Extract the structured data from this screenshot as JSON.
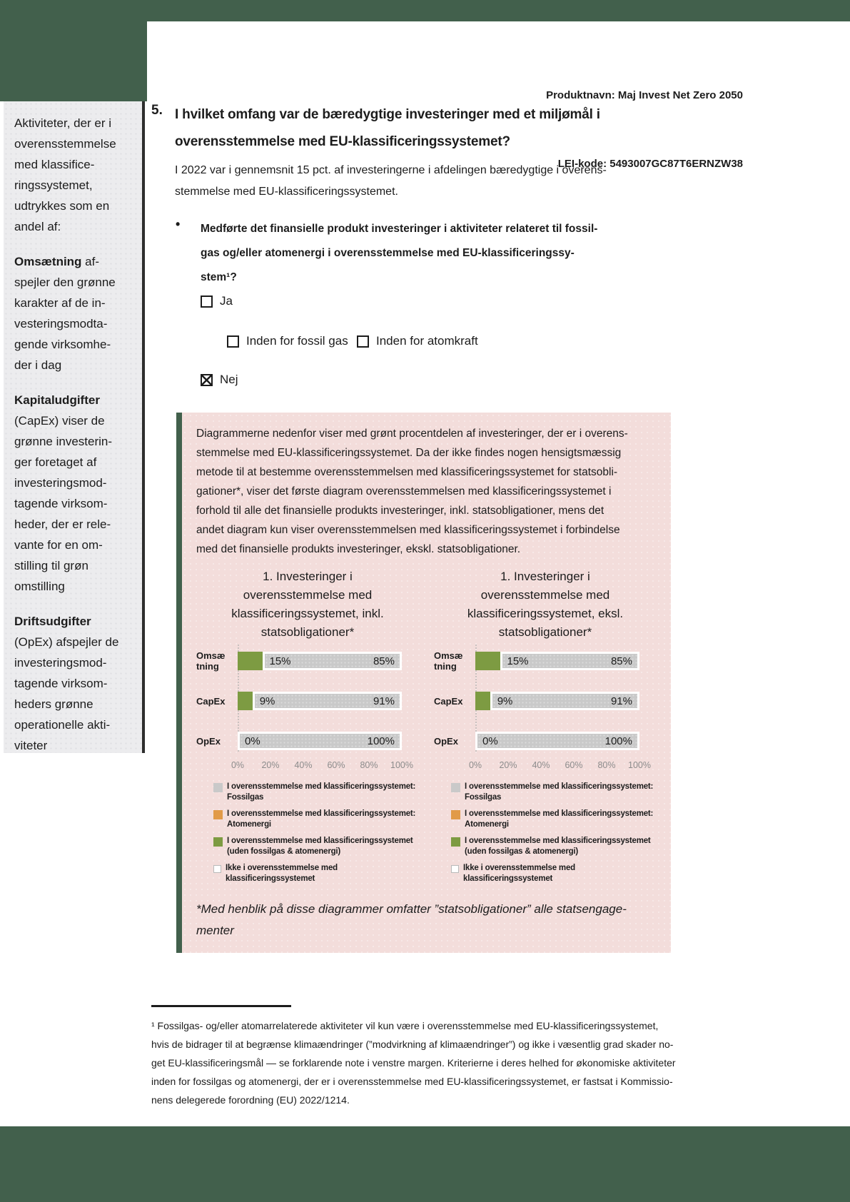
{
  "colors": {
    "frame_green": "#42604c",
    "sidebar_bg": "#ececee",
    "pink_bg": "#f3dddb",
    "bar_green": "#7d9b42",
    "bar_gray": "#c9c9c9",
    "legend_orange": "#e19a48",
    "tick_gray": "#8c8c8c",
    "text": "#1c1c1c"
  },
  "header": {
    "product_line": "Produktnavn: Maj Invest Net Zero 2050",
    "lei_line": "LEI-kode: 5493007GC87T6ERNZW38"
  },
  "sidebar": {
    "intro": "Aktiviteter, der er i\noverensstemmelse\nmed klassifice-\nringssystemet,\nudtrykkes som en\nandel af:",
    "paragraphs": [
      {
        "lead": "Omsætning",
        "rest": " af-\nspejler den grønne\nkarakter af de in-\nvesteringsmodta-\ngende virksomhe-\nder i dag"
      },
      {
        "lead": "Kapitaludgifter",
        "rest": "\n(CapEx) viser de\ngrønne investerin-\nger foretaget af\ninvesteringsmod-\ntagende virksom-\nheder, der er rele-\nvante for en om-\nstilling til grøn\nomstilling"
      },
      {
        "lead": "Driftsudgifter",
        "rest": "\n(OpEx) afspejler de\ninvesteringsmod-\ntagende virksom-\nheders grønne\noperationelle akti-\nviteter"
      }
    ]
  },
  "question": {
    "number": "5.",
    "title": "I hvilket omfang var de bæredygtige investeringer med et miljømål i\noverensstemmelse med EU-klassificeringssystemet?",
    "intro": "I 2022 var i gennemsnit 15 pct. af investeringerne i afdelingen bæredygtige i overens-\nstemmelse med EU-klassificeringssystemet.",
    "bullet_marker": "•",
    "bullet": "Medførte det finansielle produkt investeringer i aktiviteter relateret til fossil-\ngas og/eller atomenergi i overensstemmelse med EU-klassificeringssy-\nstem¹?",
    "checkboxes": [
      {
        "label": "Ja",
        "checked": false
      },
      {
        "label": "Inden for fossil gas",
        "checked": false
      },
      {
        "label": "Inden for atomkraft",
        "checked": false
      },
      {
        "label": "Nej",
        "checked": true
      }
    ]
  },
  "pink_box": {
    "intro": "Diagrammerne nedenfor viser med grønt procentdelen af investeringer, der er i overens-\nstemmelse med EU-klassificeringssystemet. Da der ikke findes nogen hensigtsmæssig\nmetode til at bestemme overensstemmelsen med klassificeringssystemet for statsobli-\ngationer*, viser det første diagram overensstemmelsen med klassificeringssystemet i\nforhold til alle det finansielle produkts investeringer, inkl. statsobligationer, mens det\nandet diagram kun viser overensstemmelsen med klassificeringssystemet i forbindelse\nmed det finansielle produkts investeringer, ekskl. statsobligationer.",
    "note": "*Med henblik på disse diagrammer omfatter ”statsobligationer” alle statsengage-\nmenter"
  },
  "chart_data": [
    {
      "type": "bar",
      "title": "1. Investeringer i\noverensstemmelse med\nklassificeringssystemet, inkl.\nstatsobligationer*",
      "categories": [
        "Omsæ\ntning",
        "CapEx",
        "OpEx"
      ],
      "series": [
        {
          "name": "I overensstemmelse med klassificeringssystemet (uden fossilgas & atomenergi)",
          "values": [
            15,
            9,
            0
          ],
          "color": "#7d9b42"
        },
        {
          "name": "Ikke i overensstemmelse med klassificeringssystemet",
          "values": [
            85,
            91,
            100
          ],
          "color": "#c9c9c9"
        }
      ],
      "bar_labels": [
        [
          "15%",
          "85%"
        ],
        [
          "9%",
          "91%"
        ],
        [
          "0%",
          "100%"
        ]
      ],
      "x_ticks": [
        "0%",
        "20%",
        "40%",
        "60%",
        "80%",
        "100%"
      ],
      "xlim": [
        0,
        100
      ],
      "legend_position": "bottom",
      "legend": [
        {
          "color": "#c9c9c9",
          "label": "I overensstemmelse med klassificeringssystemet:\nFossilgas"
        },
        {
          "color": "#e19a48",
          "label": "I overensstemmelse med klassificeringssystemet:\nAtomenergi"
        },
        {
          "color": "#7d9b42",
          "label": "I overensstemmelse med klassificeringssystemet\n(uden fossilgas & atomenergi)"
        },
        {
          "color": "#ffffff",
          "label": "Ikke i overensstemmelse med\nklassificeringssystemet"
        }
      ]
    },
    {
      "type": "bar",
      "title": "1. Investeringer i\noverensstemmelse med\nklassificeringssystemet, eksl.\nstatsobligationer*",
      "categories": [
        "Omsæ\ntning",
        "CapEx",
        "OpEx"
      ],
      "series": [
        {
          "name": "I overensstemmelse med klassificeringssystemet (uden fossilgas & atomenergi)",
          "values": [
            15,
            9,
            0
          ],
          "color": "#7d9b42"
        },
        {
          "name": "Ikke i overensstemmelse med klassificeringssystemet",
          "values": [
            85,
            91,
            100
          ],
          "color": "#c9c9c9"
        }
      ],
      "bar_labels": [
        [
          "15%",
          "85%"
        ],
        [
          "9%",
          "91%"
        ],
        [
          "0%",
          "100%"
        ]
      ],
      "x_ticks": [
        "0%",
        "20%",
        "40%",
        "60%",
        "80%",
        "100%"
      ],
      "xlim": [
        0,
        100
      ],
      "legend_position": "bottom",
      "legend": [
        {
          "color": "#c9c9c9",
          "label": "I overensstemmelse med klassificeringssystemet:\nFossilgas"
        },
        {
          "color": "#e19a48",
          "label": "I overensstemmelse med klassificeringssystemet:\nAtomenergi"
        },
        {
          "color": "#7d9b42",
          "label": "I overensstemmelse med klassificeringssystemet\n(uden fossilgas & atomenergi)"
        },
        {
          "color": "#ffffff",
          "label": "Ikke i overensstemmelse med\nklassificeringssystemet"
        }
      ]
    }
  ],
  "footnote": {
    "text": "¹ Fossilgas- og/eller atomarrelaterede aktiviteter vil kun være i overensstemmelse med EU-klassificeringssystemet,\nhvis de bidrager til at begrænse klimaændringer (”modvirkning af klimaændringer”) og ikke i væsentlig grad skader no-\nget EU-klassificeringsmål — se forklarende note i venstre margen. Kriterierne i deres helhed for økonomiske aktiviteter\ninden for fossilgas og atomenergi, der er i overensstemmelse med EU-klassificeringssystemet, er fastsat i Kommissio-\nnens delegerede forordning (EU) 2022/1214."
  }
}
